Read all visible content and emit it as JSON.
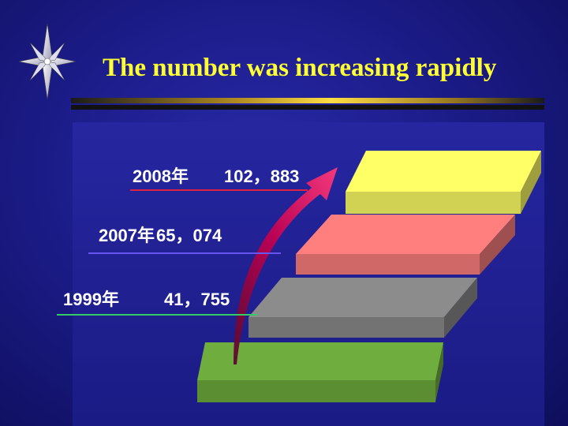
{
  "slide": {
    "title": "The number was increasing rapidly"
  },
  "icons": {
    "logo": "compass-star-icon"
  },
  "colors": {
    "title": "#ffff33",
    "step_top": "#ffff66",
    "step_2": "#ff7f7f",
    "step_3": "#8c8c8c",
    "step_bottom": "#6fad3e",
    "arrow": "#c00050",
    "underline_top": "#dd2244",
    "underline_mid": "#6655ee",
    "underline_low": "#33cc66"
  },
  "chart_data": {
    "type": "bar",
    "title": "",
    "categories": [
      "1999年",
      "2007年",
      "2008年"
    ],
    "values": [
      41755,
      65074,
      102883
    ],
    "display_values": [
      "41，755",
      "65，074",
      "102，883"
    ]
  }
}
